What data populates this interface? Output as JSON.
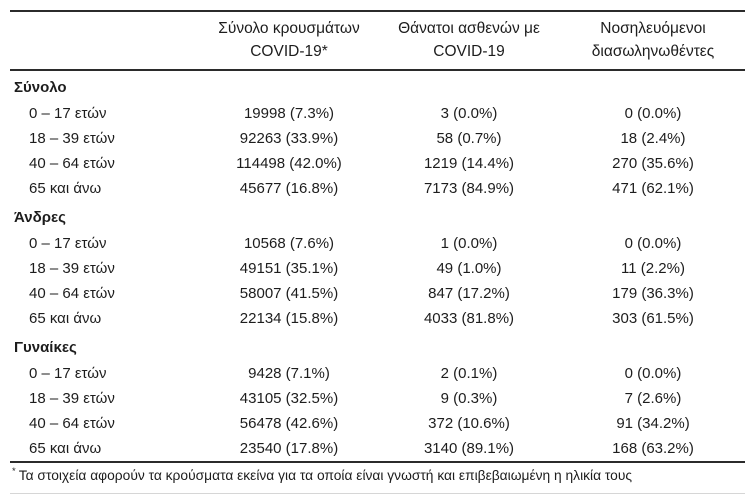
{
  "page": {
    "background_color": "#ffffff",
    "text_color": "#1d1d1d",
    "rule_color": "#2b2b2b",
    "light_rule_color": "#d6d6d6"
  },
  "table": {
    "columns": [
      {
        "label_line1": "",
        "label_line2": ""
      },
      {
        "label_line1": "Σύνολο κρουσμάτων",
        "label_line2": "COVID-19*"
      },
      {
        "label_line1": "Θάνατοι ασθενών με",
        "label_line2": "COVID-19"
      },
      {
        "label_line1": "Νοσηλευόμενοι",
        "label_line2": "διασωληνωθέντες"
      }
    ],
    "sections": [
      {
        "label": "Σύνολο",
        "rows": [
          {
            "age": "0 – 17 ετών",
            "values": [
              "19998 (7.3%)",
              "3 (0.0%)",
              "0 (0.0%)"
            ]
          },
          {
            "age": "18 – 39 ετών",
            "values": [
              "92263 (33.9%)",
              "58 (0.7%)",
              "18 (2.4%)"
            ]
          },
          {
            "age": "40 – 64 ετών",
            "values": [
              "114498 (42.0%)",
              "1219 (14.4%)",
              "270 (35.6%)"
            ]
          },
          {
            "age": "65 και άνω",
            "values": [
              "45677 (16.8%)",
              "7173 (84.9%)",
              "471 (62.1%)"
            ]
          }
        ]
      },
      {
        "label": "Άνδρες",
        "rows": [
          {
            "age": "0 – 17 ετών",
            "values": [
              "10568 (7.6%)",
              "1 (0.0%)",
              "0 (0.0%)"
            ]
          },
          {
            "age": "18 – 39 ετών",
            "values": [
              "49151 (35.1%)",
              "49 (1.0%)",
              "11 (2.2%)"
            ]
          },
          {
            "age": "40 – 64 ετών",
            "values": [
              "58007 (41.5%)",
              "847 (17.2%)",
              "179 (36.3%)"
            ]
          },
          {
            "age": "65 και άνω",
            "values": [
              "22134 (15.8%)",
              "4033 (81.8%)",
              "303 (61.5%)"
            ]
          }
        ]
      },
      {
        "label": "Γυναίκες",
        "rows": [
          {
            "age": "0 – 17 ετών",
            "values": [
              "9428 (7.1%)",
              "2 (0.1%)",
              "0 (0.0%)"
            ]
          },
          {
            "age": "18 – 39 ετών",
            "values": [
              "43105 (32.5%)",
              "9 (0.3%)",
              "7 (2.6%)"
            ]
          },
          {
            "age": "40 – 64 ετών",
            "values": [
              "56478 (42.6%)",
              "372 (10.6%)",
              "91 (34.2%)"
            ]
          },
          {
            "age": "65 και άνω",
            "values": [
              "23540 (17.8%)",
              "3140 (89.1%)",
              "168 (63.2%)"
            ]
          }
        ]
      }
    ],
    "column_keys": [
      "cases",
      "deaths",
      "intubated"
    ],
    "footnote": {
      "marker": "*",
      "text": "Τα στοιχεία αφορούν τα κρούσματα εκείνα για τα οποία είναι γνωστή και επιβεβαιωμένη η ηλικία τους"
    }
  }
}
